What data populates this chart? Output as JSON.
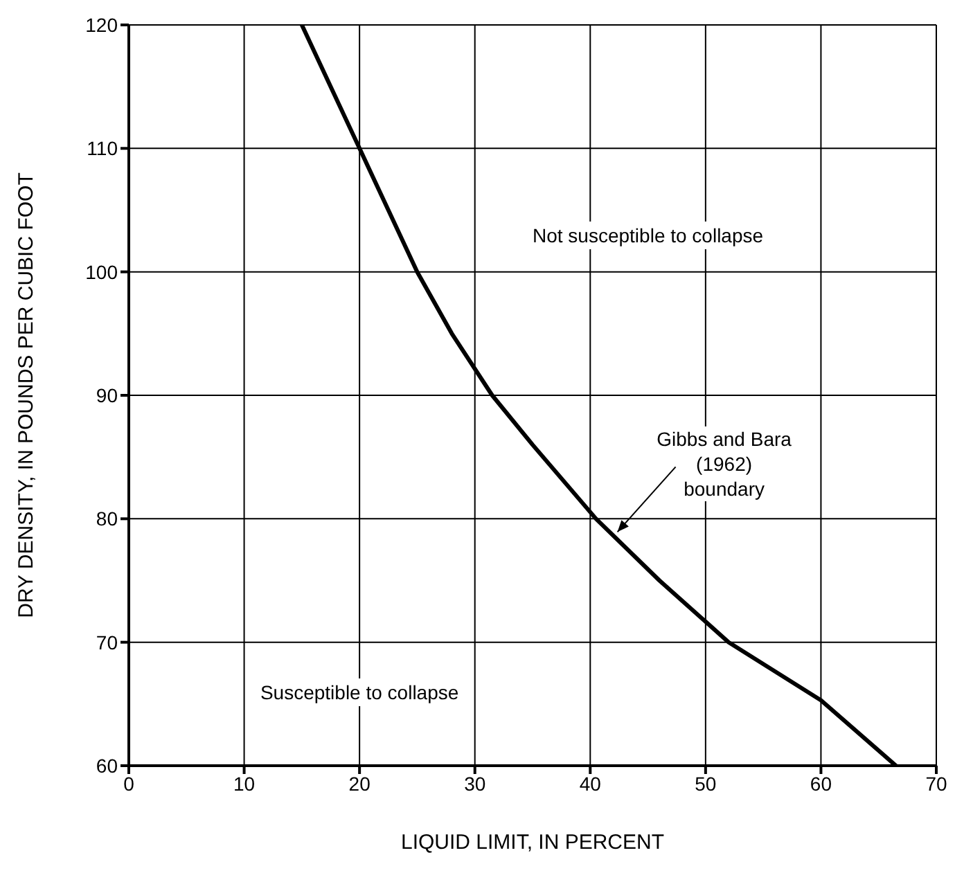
{
  "chart_data": {
    "type": "line",
    "xlabel": "LIQUID LIMIT, IN PERCENT",
    "ylabel": "DRY DENSITY, IN POUNDS PER CUBIC FOOT",
    "xlim": [
      0,
      70
    ],
    "xticks": [
      0,
      10,
      20,
      30,
      40,
      50,
      60,
      70
    ],
    "ylim": [
      60,
      120
    ],
    "yticks": [
      60,
      70,
      80,
      90,
      100,
      110,
      120
    ],
    "grid": true,
    "series": [
      {
        "color": "#000000",
        "x": [
          15,
          17.5,
          20,
          22.5,
          25,
          28,
          31.5,
          35,
          40.5,
          46,
          52,
          60,
          66.5
        ],
        "values": [
          120,
          115,
          110,
          105,
          100,
          95,
          90,
          86,
          80,
          75,
          70,
          65.3,
          60
        ]
      }
    ],
    "annotations": [
      "Not susceptible to collapse",
      "Susceptible to collapse",
      {
        "text": "Gibbs and Bara\n(1962)\nboundary",
        "x": 42,
        "y": 78.6
      }
    ]
  }
}
